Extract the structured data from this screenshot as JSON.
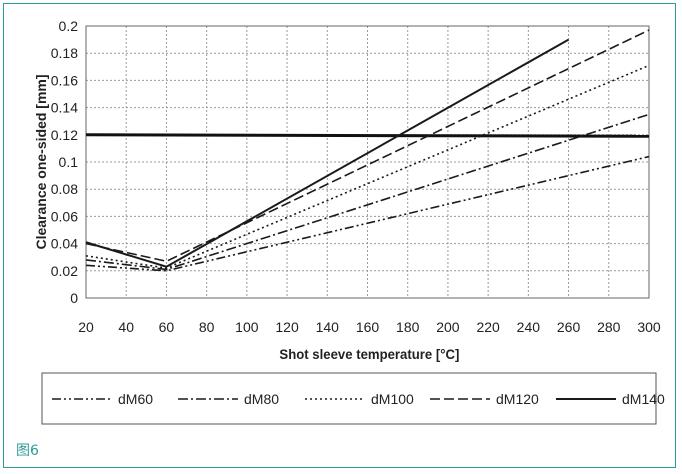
{
  "figure_label": "图6",
  "chart_data": {
    "type": "line",
    "title": "",
    "xlabel": "Shot sleeve temperature [°C]",
    "ylabel": "Clearance one-sided [mm]",
    "xlim": [
      20,
      300
    ],
    "ylim": [
      0,
      0.2
    ],
    "xticks": [
      20,
      40,
      60,
      80,
      100,
      120,
      140,
      160,
      180,
      200,
      220,
      240,
      260,
      280,
      300
    ],
    "yticks": [
      0,
      0.02,
      0.04,
      0.06,
      0.08,
      0.1,
      0.12,
      0.14,
      0.16,
      0.18,
      0.2
    ],
    "ytick_labels": [
      "0",
      "0.02",
      "0.04",
      "0.06",
      "0.08",
      "0.1",
      "0.12",
      "0.14",
      "0.16",
      "0.18",
      "0.2"
    ],
    "grid": true,
    "legend_position": "bottom",
    "series": [
      {
        "name": "dM60",
        "dash": "dash-dot-dot",
        "x": [
          20,
          60,
          300
        ],
        "y": [
          0.024,
          0.02,
          0.104
        ]
      },
      {
        "name": "dM80",
        "dash": "dash-dot",
        "x": [
          20,
          60,
          300
        ],
        "y": [
          0.028,
          0.021,
          0.135
        ]
      },
      {
        "name": "dM100",
        "dash": "dotted",
        "x": [
          20,
          60,
          300
        ],
        "y": [
          0.031,
          0.022,
          0.171
        ]
      },
      {
        "name": "dM120",
        "dash": "dashed",
        "x": [
          20,
          60,
          300
        ],
        "y": [
          0.04,
          0.027,
          0.197
        ]
      },
      {
        "name": "dM140",
        "dash": "solid",
        "x": [
          20,
          60,
          260
        ],
        "y": [
          0.041,
          0.023,
          0.19
        ]
      }
    ],
    "horizontal_lines": [
      {
        "y": 0.12,
        "x": [
          20,
          300
        ],
        "style": "solid-thick"
      }
    ]
  }
}
